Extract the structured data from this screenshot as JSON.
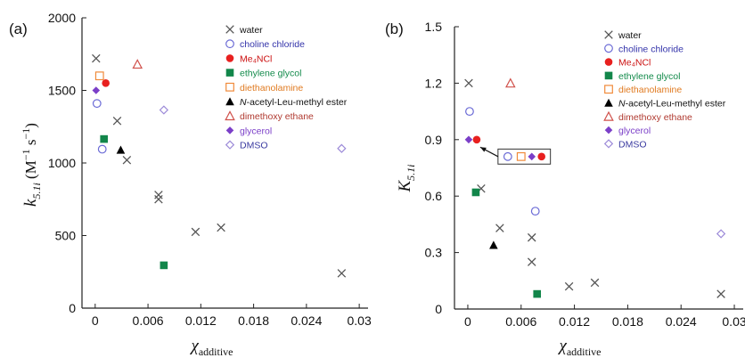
{
  "chart_data": [
    {
      "type": "scatter",
      "panel_label": "(a)",
      "ylim": [
        0,
        2000
      ],
      "xlim": [
        -0.0015,
        0.031
      ],
      "yticks": [
        "0",
        "500",
        "1000",
        "1500",
        "2000"
      ],
      "xticks": [
        "0",
        "0.006",
        "0.012",
        "0.018",
        "0.024",
        "0.03"
      ],
      "ylabel": {
        "main": "k",
        "sub": "5.1i",
        "unit": "(M",
        "exp1": "−1",
        "mid": " s",
        "exp2": "−1",
        "close": ")"
      },
      "xlabel": {
        "main": "χ",
        "sub": "additive"
      },
      "series": [
        {
          "name": "water",
          "marker": "x",
          "color": "#555555",
          "label_color": "#111111",
          "points": [
            [
              0.0001,
              1720
            ],
            [
              0.0025,
              1290
            ],
            [
              0.0036,
              1020
            ],
            [
              0.0072,
              780
            ],
            [
              0.0072,
              750
            ],
            [
              0.0114,
              525
            ],
            [
              0.0143,
              555
            ],
            [
              0.028,
              240
            ]
          ]
        },
        {
          "name": "choline chloride",
          "marker": "circle-open",
          "color": "#6b6bd6",
          "label_color": "#3333aa",
          "points": [
            [
              0.0002,
              1410
            ],
            [
              0.0008,
              1095
            ]
          ]
        },
        {
          "name": "Me₄NCl",
          "marker": "circle",
          "color": "#e8201f",
          "label_color": "#cc1111",
          "points": [
            [
              0.0012,
              1550
            ]
          ]
        },
        {
          "name": "ethylene glycol",
          "marker": "square",
          "color": "#12864a",
          "label_color": "#128a4a",
          "points": [
            [
              0.001,
              1165
            ],
            [
              0.0078,
              295
            ]
          ]
        },
        {
          "name": "diethanolamine",
          "marker": "square-open",
          "color": "#f08a3a",
          "label_color": "#e07a20",
          "points": [
            [
              0.0005,
              1600
            ]
          ]
        },
        {
          "name": "N-acetyl-Leu-methyl ester",
          "marker": "triangle",
          "color": "#000000",
          "label_color": "#111111",
          "points": [
            [
              0.0029,
              1090
            ]
          ]
        },
        {
          "name": "dimethoxy ethane",
          "marker": "triangle-open",
          "color": "#d0504a",
          "label_color": "#b03a30",
          "points": [
            [
              0.0048,
              1680
            ]
          ]
        },
        {
          "name": "glycerol",
          "marker": "diamond",
          "color": "#7b3fc8",
          "label_color": "#7b3fc8",
          "points": [
            [
              0.0001,
              1500
            ]
          ]
        },
        {
          "name": "DMSO",
          "marker": "diamond-open",
          "color": "#9c8ad8",
          "label_color": "#3a3aa0",
          "points": [
            [
              0.0078,
              1365
            ],
            [
              0.028,
              1100
            ]
          ]
        }
      ]
    },
    {
      "type": "scatter",
      "panel_label": "(b)",
      "ylim": [
        0,
        1.5
      ],
      "xlim": [
        -0.0015,
        0.031
      ],
      "yticks": [
        "0",
        "0.3",
        "0.6",
        "0.9",
        "1.2",
        "1.5"
      ],
      "xticks": [
        "0",
        "0.006",
        "0.012",
        "0.018",
        "0.024",
        "0.03"
      ],
      "ylabel": {
        "main": "K",
        "sub": "5.1i"
      },
      "xlabel": {
        "main": "χ",
        "sub": "additive"
      },
      "inset_box": {
        "x0": 0.0034,
        "x1": 0.0093,
        "y0": 0.77,
        "y1": 0.85,
        "members": [
          {
            "marker": "circle-open",
            "color": "#6b6bd6",
            "x": 0.0045,
            "y": 0.81
          },
          {
            "marker": "square-open",
            "color": "#f08a3a",
            "x": 0.006,
            "y": 0.81
          },
          {
            "marker": "diamond",
            "color": "#7b3fc8",
            "x": 0.0072,
            "y": 0.81
          },
          {
            "marker": "circle",
            "color": "#e8201f",
            "x": 0.0083,
            "y": 0.81
          }
        ]
      },
      "arrow": {
        "from": [
          0.0034,
          0.81
        ],
        "to": [
          0.0014,
          0.86
        ]
      },
      "series": [
        {
          "name": "water",
          "marker": "x",
          "color": "#555555",
          "label_color": "#111111",
          "points": [
            [
              0.0001,
              1.2
            ],
            [
              0.0015,
              0.64
            ],
            [
              0.0036,
              0.43
            ],
            [
              0.0072,
              0.38
            ],
            [
              0.0072,
              0.25
            ],
            [
              0.0114,
              0.12
            ],
            [
              0.0143,
              0.14
            ],
            [
              0.0285,
              0.08
            ]
          ]
        },
        {
          "name": "choline chloride",
          "marker": "circle-open",
          "color": "#6b6bd6",
          "label_color": "#3333aa",
          "points": [
            [
              0.0002,
              1.05
            ],
            [
              0.0076,
              0.52
            ]
          ]
        },
        {
          "name": "Me₄NCl",
          "marker": "circle",
          "color": "#e8201f",
          "label_color": "#cc1111",
          "points": [
            [
              0.001,
              0.9
            ]
          ]
        },
        {
          "name": "ethylene glycol",
          "marker": "square",
          "color": "#12864a",
          "label_color": "#128a4a",
          "points": [
            [
              0.0009,
              0.62
            ],
            [
              0.0078,
              0.08
            ]
          ]
        },
        {
          "name": "diethanolamine",
          "marker": "square-open",
          "color": "#f08a3a",
          "label_color": "#e07a20",
          "points": []
        },
        {
          "name": "N-acetyl-Leu-methyl ester",
          "marker": "triangle",
          "color": "#000000",
          "label_color": "#111111",
          "points": [
            [
              0.0029,
              0.34
            ]
          ]
        },
        {
          "name": "dimethoxy ethane",
          "marker": "triangle-open",
          "color": "#d0504a",
          "label_color": "#b03a30",
          "points": [
            [
              0.0048,
              1.2
            ]
          ]
        },
        {
          "name": "glycerol",
          "marker": "diamond",
          "color": "#7b3fc8",
          "label_color": "#7b3fc8",
          "points": [
            [
              0.0001,
              0.9
            ]
          ]
        },
        {
          "name": "DMSO",
          "marker": "diamond-open",
          "color": "#9c8ad8",
          "label_color": "#3a3aa0",
          "points": [
            [
              0.0285,
              0.4
            ]
          ]
        }
      ]
    }
  ]
}
